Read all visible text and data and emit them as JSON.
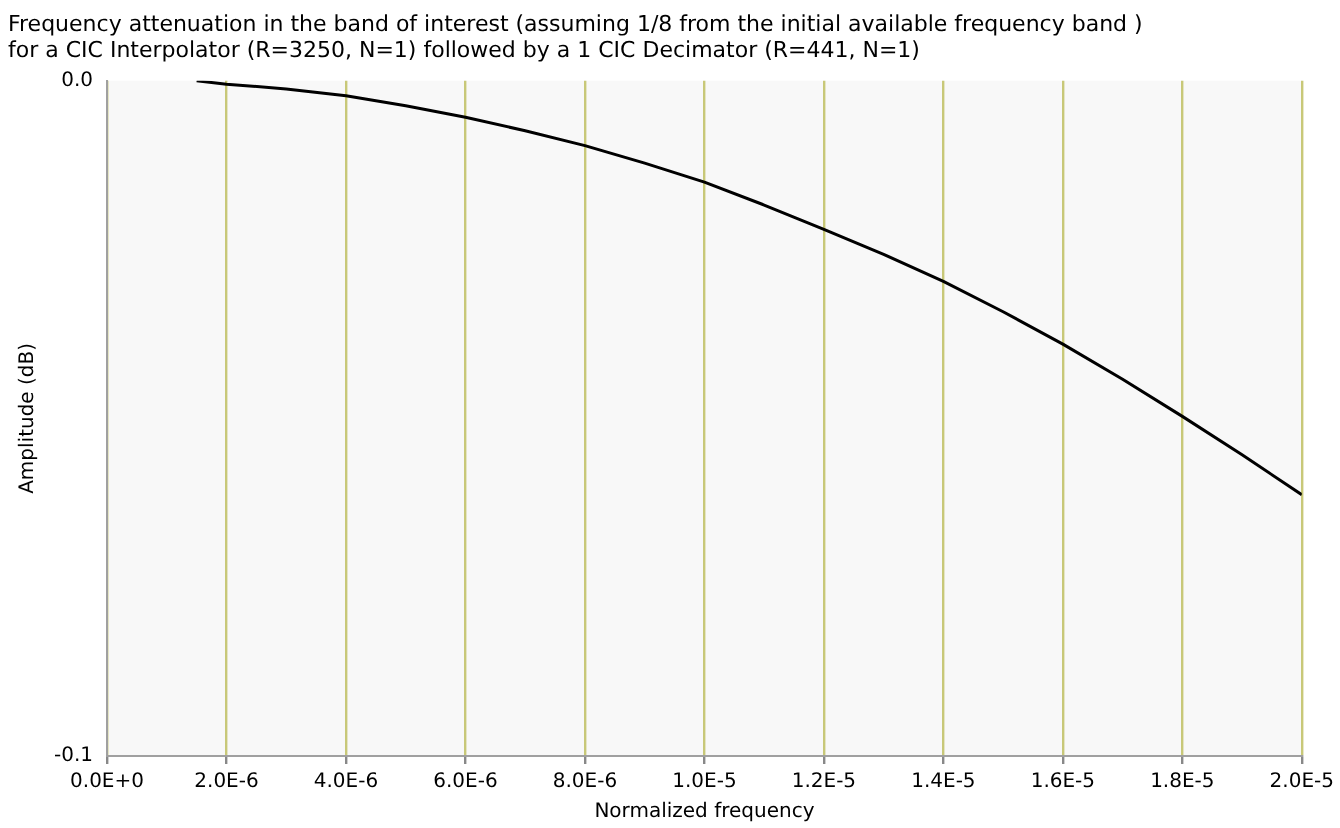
{
  "chart_data": {
    "type": "line",
    "title": "Frequency attenuation in the band of interest (assuming 1/8 from the initial available frequency band )\nfor a CIC Interpolator (R=3250, N=1) followed by a 1 CIC Decimator (R=441, N=1)",
    "xlabel": "Normalized frequency",
    "ylabel": "Amplitude (dB)",
    "x": [
      1.5e-06,
      2e-06,
      3e-06,
      4e-06,
      5e-06,
      6e-06,
      7e-06,
      8e-06,
      9e-06,
      1e-05,
      1.1e-05,
      1.2e-05,
      1.3e-05,
      1.4e-05,
      1.5e-05,
      1.6e-05,
      1.7e-05,
      1.8e-05,
      1.9e-05,
      2e-05
    ],
    "series": [
      {
        "color": "#000000",
        "values": [
          0,
          -0.0005,
          -0.0012,
          -0.0022,
          -0.0037,
          -0.0054,
          -0.0074,
          -0.0096,
          -0.0122,
          -0.015,
          -0.0184,
          -0.022,
          -0.0257,
          -0.0297,
          -0.0342,
          -0.039,
          -0.0442,
          -0.0497,
          -0.0554,
          -0.0613
        ]
      }
    ],
    "xlim": [
      0,
      2e-05
    ],
    "xticks": [
      {
        "value": 0,
        "label": "0.0E+0"
      },
      {
        "value": 2e-06,
        "label": "2.0E-6"
      },
      {
        "value": 4e-06,
        "label": "4.0E-6"
      },
      {
        "value": 6e-06,
        "label": "6.0E-6"
      },
      {
        "value": 8e-06,
        "label": "8.0E-6"
      },
      {
        "value": 1e-05,
        "label": "1.0E-5"
      },
      {
        "value": 1.2e-05,
        "label": "1.2E-5"
      },
      {
        "value": 1.4e-05,
        "label": "1.4E-5"
      },
      {
        "value": 1.6e-05,
        "label": "1.6E-5"
      },
      {
        "value": 1.8e-05,
        "label": "1.8E-5"
      },
      {
        "value": 2e-05,
        "label": "2.0E-5"
      }
    ],
    "ylim": [
      -0.1,
      0
    ],
    "yticks": [
      -0.1,
      {
        "value": 0,
        "label": "0.0"
      }
    ],
    "grid": "x",
    "legend": false,
    "marker": "none",
    "line_style": "solid"
  }
}
